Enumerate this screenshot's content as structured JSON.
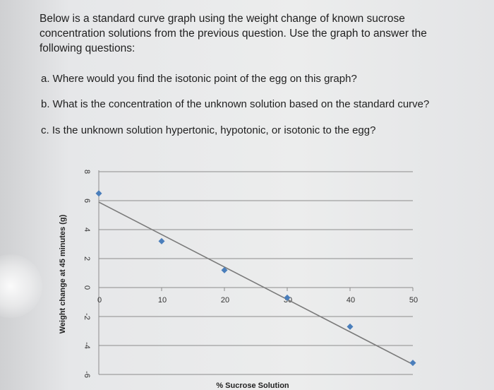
{
  "question": {
    "intro": "Below is a standard curve graph using the weight change of known sucrose concentration solutions from the previous question. Use the graph to answer the following questions:",
    "items": [
      "a. Where would you find the isotonic point of the egg on this graph?",
      "b. What is the concentration of the unknown solution based on the standard curve?",
      "c. Is the unknown solution hypertonic, hypotonic, or isotonic to the egg?"
    ]
  },
  "chart_data": {
    "type": "scatter",
    "title": "",
    "xlabel": "% Sucrose Solution",
    "ylabel": "Weight change at 45 minutes (g)",
    "xlim": [
      0,
      50
    ],
    "ylim": [
      -6,
      8
    ],
    "x_ticks": [
      0,
      10,
      20,
      30,
      40,
      50
    ],
    "y_ticks": [
      8,
      6,
      4,
      2,
      0,
      -2,
      -4,
      -6
    ],
    "grid": "horizontal",
    "series": [
      {
        "points": [
          {
            "x": 0,
            "y": 6.5
          },
          {
            "x": 10,
            "y": 3.2
          },
          {
            "x": 20,
            "y": 1.2
          },
          {
            "x": 30,
            "y": -0.7
          },
          {
            "x": 40,
            "y": -2.7
          },
          {
            "x": 50,
            "y": -5.2
          }
        ],
        "color": "#4a7ebb"
      }
    ],
    "trendline": {
      "start": {
        "x": 0,
        "y": 5.9
      },
      "end": {
        "x": 50,
        "y": -5.3
      },
      "color": "#7a7a7a"
    }
  }
}
